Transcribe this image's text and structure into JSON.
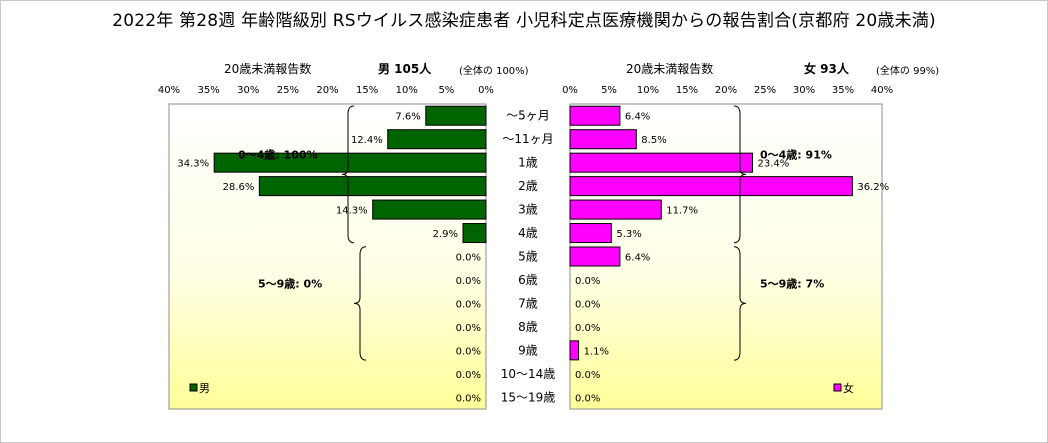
{
  "title": "2022年 第28週 年齢階級別 RSウイルス感染症患者 小児科定点医療機関からの報告割合(京都府 20歳未満)",
  "chart_data": {
    "type": "bar",
    "categories": [
      "～5ヶ月",
      "～11ヶ月",
      "1歳",
      "2歳",
      "3歳",
      "4歳",
      "5歳",
      "6歳",
      "7歳",
      "8歳",
      "9歳",
      "10～14歳",
      "15～19歳"
    ],
    "xlim": [
      0,
      40
    ],
    "xticks": [
      "0%",
      "5%",
      "10%",
      "15%",
      "20%",
      "25%",
      "30%",
      "35%",
      "40%"
    ],
    "series": [
      {
        "name": "男",
        "color": "#006400",
        "values": [
          7.6,
          12.4,
          34.3,
          28.6,
          14.3,
          2.9,
          0.0,
          0.0,
          0.0,
          0.0,
          0.0,
          0.0,
          0.0
        ],
        "labels": [
          "7.6%",
          "12.4%",
          "34.3%",
          "28.6%",
          "14.3%",
          "2.9%",
          "0.0%",
          "0.0%",
          "0.0%",
          "0.0%",
          "0.0%",
          "0.0%",
          "0.0%"
        ],
        "axis_caption": "20歳未満報告数",
        "total_label": "男  105人",
        "share_label": "(全体の  100%)",
        "groups": [
          {
            "label": "0～4歳: 100%",
            "from": 0,
            "to": 5
          },
          {
            "label": "5～9歳: 0%",
            "from": 6,
            "to": 10
          }
        ]
      },
      {
        "name": "女",
        "color": "#ff00ff",
        "values": [
          6.4,
          8.5,
          23.4,
          36.2,
          11.7,
          5.3,
          6.4,
          0.0,
          0.0,
          0.0,
          1.1,
          0.0,
          0.0
        ],
        "labels": [
          "6.4%",
          "8.5%",
          "23.4%",
          "36.2%",
          "11.7%",
          "5.3%",
          "6.4%",
          "0.0%",
          "0.0%",
          "0.0%",
          "1.1%",
          "0.0%",
          "0.0%"
        ],
        "axis_caption": "20歳未満報告数",
        "total_label": "女  93人",
        "share_label": "(全体の  99%)",
        "groups": [
          {
            "label": "0～4歳: 91%",
            "from": 0,
            "to": 5
          },
          {
            "label": "5～9歳: 7%",
            "from": 6,
            "to": 10
          }
        ]
      }
    ]
  }
}
